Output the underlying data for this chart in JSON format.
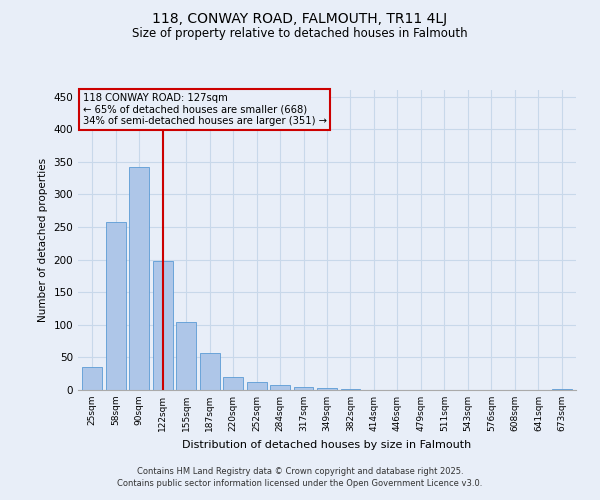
{
  "title": "118, CONWAY ROAD, FALMOUTH, TR11 4LJ",
  "subtitle": "Size of property relative to detached houses in Falmouth",
  "xlabel": "Distribution of detached houses by size in Falmouth",
  "ylabel": "Number of detached properties",
  "footer_line1": "Contains HM Land Registry data © Crown copyright and database right 2025.",
  "footer_line2": "Contains public sector information licensed under the Open Government Licence v3.0.",
  "annotation_line1": "118 CONWAY ROAD: 127sqm",
  "annotation_line2": "← 65% of detached houses are smaller (668)",
  "annotation_line3": "34% of semi-detached houses are larger (351) →",
  "property_line_x": 3,
  "bar_color": "#aec6e8",
  "bar_edge_color": "#5b9bd5",
  "property_line_color": "#cc0000",
  "annotation_box_color": "#cc0000",
  "background_color": "#e8eef8",
  "grid_color": "#c8d8ea",
  "categories": [
    "25sqm",
    "58sqm",
    "90sqm",
    "122sqm",
    "155sqm",
    "187sqm",
    "220sqm",
    "252sqm",
    "284sqm",
    "317sqm",
    "349sqm",
    "382sqm",
    "414sqm",
    "446sqm",
    "479sqm",
    "511sqm",
    "543sqm",
    "576sqm",
    "608sqm",
    "641sqm",
    "673sqm"
  ],
  "values": [
    36,
    257,
    342,
    198,
    105,
    57,
    20,
    12,
    8,
    5,
    3,
    1,
    0,
    0,
    0,
    0,
    0,
    0,
    0,
    0,
    1
  ],
  "ylim": [
    0,
    460
  ],
  "yticks": [
    0,
    50,
    100,
    150,
    200,
    250,
    300,
    350,
    400,
    450
  ]
}
